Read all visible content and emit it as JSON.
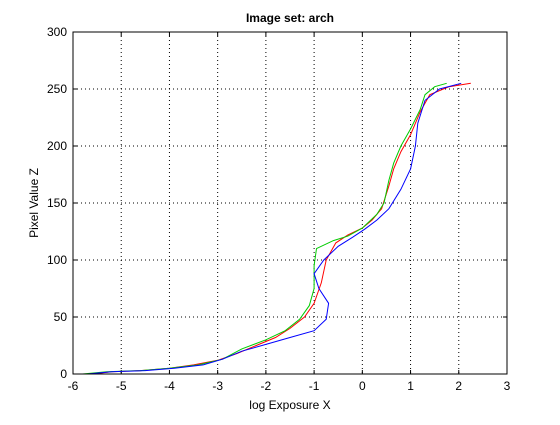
{
  "chart_data": {
    "type": "line",
    "title": "Image set: arch",
    "xlabel": "log Exposure X",
    "ylabel": "Pixel Value Z",
    "xlim": [
      -6,
      3
    ],
    "ylim": [
      0,
      300
    ],
    "xticks": [
      -6,
      -5,
      -4,
      -3,
      -2,
      -1,
      0,
      1,
      2,
      3
    ],
    "yticks": [
      0,
      50,
      100,
      150,
      200,
      250,
      300
    ],
    "grid": true,
    "legend": "none",
    "series": [
      {
        "color": "#ff0000",
        "points": [
          [
            -5.6,
            0
          ],
          [
            -5.2,
            2
          ],
          [
            -4.6,
            3
          ],
          [
            -4.0,
            5
          ],
          [
            -3.5,
            8
          ],
          [
            -3.0,
            12
          ],
          [
            -2.6,
            18
          ],
          [
            -2.2,
            25
          ],
          [
            -1.8,
            32
          ],
          [
            -1.5,
            40
          ],
          [
            -1.2,
            50
          ],
          [
            -1.0,
            62
          ],
          [
            -0.85,
            80
          ],
          [
            -0.75,
            100
          ],
          [
            -0.55,
            115
          ],
          [
            -0.3,
            122
          ],
          [
            0.0,
            128
          ],
          [
            0.2,
            135
          ],
          [
            0.4,
            145
          ],
          [
            0.55,
            165
          ],
          [
            0.65,
            180
          ],
          [
            0.8,
            195
          ],
          [
            1.0,
            210
          ],
          [
            1.2,
            230
          ],
          [
            1.4,
            245
          ],
          [
            1.8,
            252
          ],
          [
            2.25,
            255
          ]
        ]
      },
      {
        "color": "#00cc00",
        "points": [
          [
            -5.8,
            0
          ],
          [
            -5.3,
            2
          ],
          [
            -4.6,
            3
          ],
          [
            -4.0,
            5
          ],
          [
            -3.4,
            8
          ],
          [
            -2.9,
            13
          ],
          [
            -2.5,
            22
          ],
          [
            -2.0,
            30
          ],
          [
            -1.6,
            38
          ],
          [
            -1.3,
            48
          ],
          [
            -1.1,
            60
          ],
          [
            -1.0,
            75
          ],
          [
            -1.0,
            95
          ],
          [
            -0.95,
            110
          ],
          [
            -0.6,
            117
          ],
          [
            -0.3,
            121
          ],
          [
            0.0,
            128
          ],
          [
            0.3,
            140
          ],
          [
            0.45,
            150
          ],
          [
            0.55,
            170
          ],
          [
            0.65,
            185
          ],
          [
            0.8,
            200
          ],
          [
            1.0,
            215
          ],
          [
            1.2,
            232
          ],
          [
            1.3,
            245
          ],
          [
            1.5,
            252
          ],
          [
            1.75,
            255
          ]
        ]
      },
      {
        "color": "#0000ff",
        "points": [
          [
            -5.7,
            0
          ],
          [
            -5.2,
            2
          ],
          [
            -4.5,
            3
          ],
          [
            -3.9,
            5
          ],
          [
            -3.3,
            8
          ],
          [
            -2.9,
            13
          ],
          [
            -2.5,
            20
          ],
          [
            -2.0,
            26
          ],
          [
            -1.5,
            32
          ],
          [
            -1.0,
            38
          ],
          [
            -0.75,
            48
          ],
          [
            -0.7,
            62
          ],
          [
            -0.9,
            75
          ],
          [
            -1.0,
            88
          ],
          [
            -0.8,
            100
          ],
          [
            -0.5,
            112
          ],
          [
            -0.2,
            120
          ],
          [
            0.05,
            127
          ],
          [
            0.3,
            135
          ],
          [
            0.55,
            145
          ],
          [
            0.8,
            162
          ],
          [
            1.0,
            180
          ],
          [
            1.1,
            200
          ],
          [
            1.15,
            220
          ],
          [
            1.3,
            240
          ],
          [
            1.6,
            250
          ],
          [
            2.05,
            255
          ]
        ]
      }
    ]
  }
}
